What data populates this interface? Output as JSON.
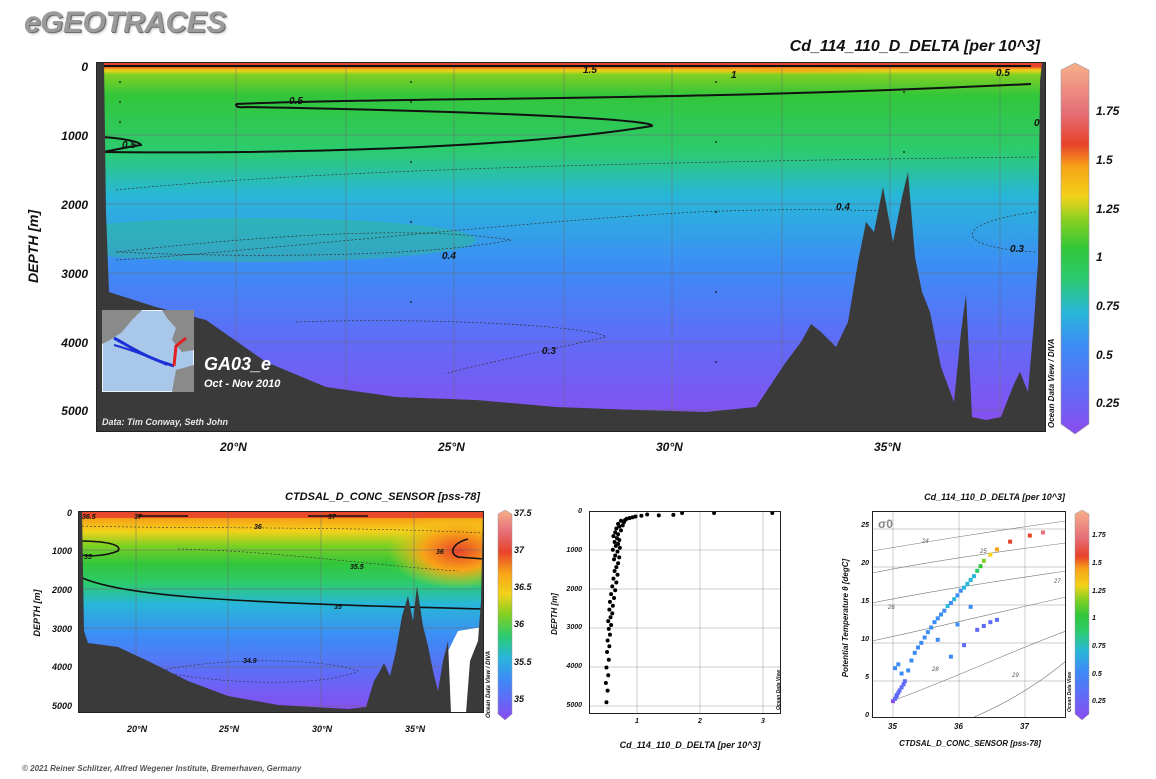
{
  "header": {
    "logo": "eGEOTRACES",
    "footer": "© 2021 Reiner Schlitzer, Alfred Wegener Institute, Bremerhaven, Germany"
  },
  "colors": {
    "land": "#3a3a3a",
    "scale": [
      "#8b4cf0",
      "#5f6cf7",
      "#3c8df5",
      "#28b7d8",
      "#2ccb6e",
      "#33c63a",
      "#7fd022",
      "#f3d21a",
      "#f7a318",
      "#e8432a",
      "#e5707a",
      "#f7b08a"
    ]
  },
  "panel_main": {
    "title": "Cd_114_110_D_DELTA [per 10^3]",
    "side_label": "Ocean Data View / DIVA",
    "section_name": "GA03_e",
    "date_range": "Oct - Nov 2010",
    "credit": "Data: Tim Conway, Seth John"
  },
  "panel_sal": {
    "title": "CTDSAL_D_CONC_SENSOR [pss-78]",
    "side_label": "Ocean Data View / DIVA"
  },
  "panel_prof": {
    "side_label": "Ocean Data View"
  },
  "panel_ts": {
    "title": "Cd_114_110_D_DELTA [per 10^3]",
    "sigma_label": "σ0",
    "side_label": "Ocean Data View"
  },
  "chart_data": [
    {
      "type": "heatmap",
      "title": "Cd_114_110_D_DELTA [per 10^3]",
      "ylabel": "DEPTH [m]",
      "xticks": [
        "20°N",
        "25°N",
        "30°N",
        "35°N"
      ],
      "xlim": [
        17,
        38.5
      ],
      "yticks": [
        "0",
        "1000",
        "2000",
        "3000",
        "4000",
        "5000"
      ],
      "ylim": [
        0,
        5200
      ],
      "colorbar_ticks": [
        "1.75",
        "1.5",
        "1.25",
        "1",
        "0.75",
        "0.5",
        "0.25"
      ],
      "colorbar_range": [
        0.1,
        1.95
      ],
      "contour_labels": [
        "1.5",
        "1",
        "0.5",
        "0.5",
        "0.5",
        "0.4",
        "0.4",
        "0.3",
        "0.3",
        "0"
      ]
    },
    {
      "type": "heatmap",
      "title": "CTDSAL_D_CONC_SENSOR [pss-78]",
      "ylabel": "DEPTH [m]",
      "xticks": [
        "20°N",
        "25°N",
        "30°N",
        "35°N"
      ],
      "xlim": [
        17,
        38.5
      ],
      "yticks": [
        "0",
        "1000",
        "2000",
        "3000",
        "4000",
        "5000"
      ],
      "ylim": [
        0,
        5200
      ],
      "colorbar_ticks": [
        "37.5",
        "37",
        "36.5",
        "36",
        "35.5",
        "35"
      ],
      "colorbar_range": [
        34.8,
        37.5
      ],
      "contour_labels": [
        "36.5",
        "37",
        "37",
        "36",
        "36",
        "35",
        "35.5",
        "35",
        "34.9"
      ]
    },
    {
      "type": "scatter",
      "xlabel": "Cd_114_110_D_DELTA [per 10^3]",
      "ylabel": "DEPTH [m]",
      "xticks": [
        "1",
        "2",
        "3"
      ],
      "xlim": [
        0,
        3.3
      ],
      "yticks": [
        "0",
        "1000",
        "2000",
        "3000",
        "4000",
        "5000"
      ],
      "ylim": [
        0,
        5100
      ],
      "points": [
        [
          3.15,
          0
        ],
        [
          2.15,
          0
        ],
        [
          1.6,
          0
        ],
        [
          1.45,
          50
        ],
        [
          1.2,
          60
        ],
        [
          1.0,
          40
        ],
        [
          0.9,
          70
        ],
        [
          0.8,
          90
        ],
        [
          0.75,
          110
        ],
        [
          0.7,
          130
        ],
        [
          0.65,
          150
        ],
        [
          0.62,
          180
        ],
        [
          0.55,
          200
        ],
        [
          0.6,
          240
        ],
        [
          0.5,
          280
        ],
        [
          0.58,
          320
        ],
        [
          0.52,
          350
        ],
        [
          0.47,
          400
        ],
        [
          0.55,
          450
        ],
        [
          0.45,
          500
        ],
        [
          0.5,
          550
        ],
        [
          0.42,
          600
        ],
        [
          0.48,
          650
        ],
        [
          0.52,
          700
        ],
        [
          0.44,
          750
        ],
        [
          0.5,
          800
        ],
        [
          0.46,
          850
        ],
        [
          0.53,
          900
        ],
        [
          0.41,
          950
        ],
        [
          0.49,
          1000
        ],
        [
          0.45,
          1100
        ],
        [
          0.52,
          1150
        ],
        [
          0.43,
          1200
        ],
        [
          0.5,
          1300
        ],
        [
          0.47,
          1400
        ],
        [
          0.44,
          1500
        ],
        [
          0.49,
          1600
        ],
        [
          0.42,
          1700
        ],
        [
          0.47,
          1800
        ],
        [
          0.4,
          1900
        ],
        [
          0.45,
          2000
        ],
        [
          0.38,
          2100
        ],
        [
          0.43,
          2200
        ],
        [
          0.36,
          2300
        ],
        [
          0.41,
          2400
        ],
        [
          0.35,
          2500
        ],
        [
          0.4,
          2600
        ],
        [
          0.37,
          2700
        ],
        [
          0.33,
          2800
        ],
        [
          0.38,
          2900
        ],
        [
          0.34,
          3000
        ],
        [
          0.36,
          3150
        ],
        [
          0.32,
          3300
        ],
        [
          0.35,
          3450
        ],
        [
          0.31,
          3600
        ],
        [
          0.34,
          3800
        ],
        [
          0.3,
          4000
        ],
        [
          0.33,
          4200
        ],
        [
          0.29,
          4400
        ],
        [
          0.32,
          4600
        ],
        [
          0.3,
          4900
        ]
      ]
    },
    {
      "type": "scatter",
      "title": "Cd_114_110_D_DELTA [per 10^3]",
      "xlabel": "CTDSAL_D_CONC_SENSOR [pss-78]",
      "ylabel": "Potential Temperature θ [degC]",
      "xticks": [
        "35",
        "36",
        "37"
      ],
      "xlim": [
        34.6,
        37.55
      ],
      "yticks": [
        "0",
        "5",
        "10",
        "15",
        "20",
        "25"
      ],
      "ylim": [
        0,
        27
      ],
      "isopycnal_labels": [
        "24",
        "25",
        "26",
        "27",
        "28",
        "29"
      ],
      "colorbar_ticks": [
        "1.75",
        "1.5",
        "1.25",
        "1",
        "0.75",
        "0.5",
        "0.25"
      ],
      "colorbar_range": [
        0.1,
        1.95
      ],
      "points": [
        [
          34.92,
          2.2,
          0.25
        ],
        [
          34.95,
          2.5,
          0.26
        ],
        [
          34.97,
          2.8,
          0.27
        ],
        [
          34.98,
          3.0,
          0.28
        ],
        [
          35.0,
          3.3,
          0.28
        ],
        [
          35.02,
          3.6,
          0.29
        ],
        [
          35.05,
          4.0,
          0.3
        ],
        [
          35.08,
          4.4,
          0.31
        ],
        [
          35.1,
          4.8,
          0.32
        ],
        [
          34.95,
          6.5,
          0.45
        ],
        [
          35.0,
          7.0,
          0.5
        ],
        [
          35.05,
          5.8,
          0.42
        ],
        [
          35.15,
          6.2,
          0.42
        ],
        [
          35.2,
          7.5,
          0.48
        ],
        [
          35.25,
          8.5,
          0.5
        ],
        [
          35.3,
          9.2,
          0.52
        ],
        [
          35.35,
          9.8,
          0.55
        ],
        [
          35.4,
          10.5,
          0.5
        ],
        [
          35.45,
          11.2,
          0.52
        ],
        [
          35.5,
          11.8,
          0.55
        ],
        [
          35.55,
          12.5,
          0.5
        ],
        [
          35.6,
          13.0,
          0.55
        ],
        [
          35.65,
          13.5,
          0.5
        ],
        [
          35.7,
          14.0,
          0.55
        ],
        [
          35.75,
          14.6,
          0.6
        ],
        [
          35.8,
          15.0,
          0.55
        ],
        [
          35.85,
          15.5,
          0.6
        ],
        [
          35.9,
          16.0,
          0.5
        ],
        [
          35.95,
          16.6,
          0.55
        ],
        [
          36.0,
          17.0,
          0.6
        ],
        [
          36.05,
          17.5,
          0.65
        ],
        [
          36.1,
          18.0,
          0.6
        ],
        [
          36.15,
          18.5,
          0.7
        ],
        [
          36.2,
          19.2,
          0.8
        ],
        [
          36.25,
          19.8,
          0.9
        ],
        [
          36.3,
          20.5,
          1.1
        ],
        [
          36.4,
          21.3,
          1.2
        ],
        [
          36.5,
          22.0,
          1.35
        ],
        [
          36.7,
          23.0,
          1.5
        ],
        [
          37.0,
          23.8,
          1.6
        ],
        [
          37.2,
          24.2,
          1.75
        ],
        [
          36.3,
          12.0,
          0.3
        ],
        [
          36.4,
          12.5,
          0.28
        ],
        [
          36.5,
          12.8,
          0.3
        ],
        [
          36.2,
          11.5,
          0.32
        ],
        [
          36.0,
          9.5,
          0.4
        ],
        [
          35.8,
          8.0,
          0.42
        ],
        [
          35.6,
          10.2,
          0.45
        ],
        [
          35.9,
          12.2,
          0.48
        ],
        [
          36.1,
          14.5,
          0.5
        ]
      ]
    }
  ]
}
